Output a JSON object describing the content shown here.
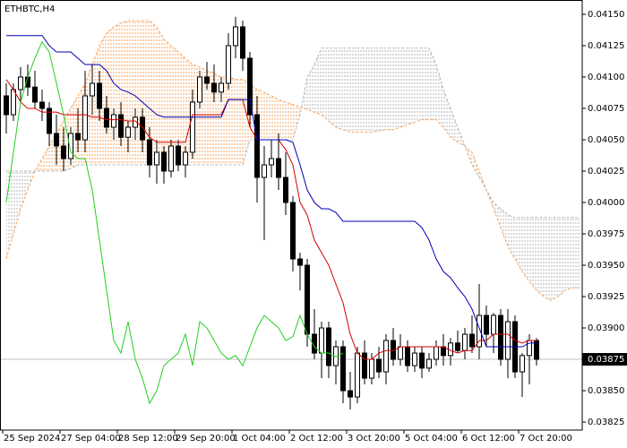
{
  "chart_data": {
    "type": "candlestick",
    "title": "ETHBTC,H4",
    "categories": [
      "25 Sep 2024",
      null,
      null,
      null,
      null,
      null,
      null,
      null,
      "27 Sep 04:00",
      null,
      null,
      null,
      null,
      null,
      null,
      null,
      "28 Sep 12:00",
      null,
      null,
      null,
      null,
      null,
      null,
      null,
      "29 Sep 20:00",
      null,
      null,
      null,
      null,
      null,
      null,
      null,
      "1 Oct 04:00",
      null,
      null,
      null,
      null,
      null,
      null,
      null,
      "2 Oct 12:00",
      null,
      null,
      null,
      null,
      null,
      null,
      null,
      "3 Oct 20:00",
      null,
      null,
      null,
      null,
      null,
      null,
      null,
      "5 Oct 04:00",
      null,
      null,
      null,
      null,
      null,
      null,
      null,
      "6 Oct 12:00",
      null,
      null,
      null,
      null,
      null,
      null,
      null,
      "7 Oct 20:00",
      null,
      null,
      null,
      null,
      null,
      null,
      null,
      null
    ],
    "candles": {
      "open": [
        0.04085,
        0.0407,
        0.0409,
        0.041,
        0.04092,
        0.0408,
        0.04075,
        0.04055,
        0.04045,
        0.04035,
        0.04055,
        0.0405,
        0.04085,
        0.04095,
        0.04075,
        0.0406,
        0.0407,
        0.04052,
        0.0406,
        0.04068,
        0.0405,
        0.0403,
        0.0404,
        0.04025,
        0.04045,
        0.0403,
        0.0404,
        0.0408,
        0.041,
        0.04095,
        0.04088,
        0.04095,
        0.04125,
        0.0414,
        0.04115,
        0.0407,
        0.0402,
        0.0403,
        0.04035,
        0.0402,
        0.04,
        0.03955,
        0.0395,
        0.03895,
        0.0388,
        0.039,
        0.0387,
        0.03885,
        0.0385,
        0.03845,
        0.0388,
        0.0386,
        0.03875,
        0.03865,
        0.0389,
        0.03875,
        0.03885,
        0.0387,
        0.0388,
        0.03868,
        0.03875,
        0.03885,
        0.03878,
        0.03888,
        0.03882,
        0.03895,
        0.03885,
        0.0391,
        0.03895,
        0.0391,
        0.03875,
        0.03905,
        0.03865,
        0.03878,
        0.0389,
        null,
        null,
        null,
        null,
        null,
        null
      ],
      "high": [
        0.04095,
        0.04095,
        0.04108,
        0.0411,
        0.04105,
        0.0409,
        0.0408,
        0.0407,
        0.0406,
        0.0406,
        0.04075,
        0.04105,
        0.0411,
        0.04105,
        0.04085,
        0.04075,
        0.0408,
        0.04065,
        0.04075,
        0.04075,
        0.0406,
        0.0405,
        0.04045,
        0.0405,
        0.0405,
        0.04045,
        0.0409,
        0.04105,
        0.04112,
        0.0411,
        0.041,
        0.04135,
        0.04148,
        0.04145,
        0.0412,
        0.04085,
        0.04045,
        0.0405,
        0.04055,
        0.0404,
        0.04005,
        0.0396,
        0.03955,
        0.03915,
        0.03905,
        0.03905,
        0.0389,
        0.0389,
        0.03865,
        0.03885,
        0.0389,
        0.0388,
        0.03885,
        0.03895,
        0.039,
        0.03895,
        0.0389,
        0.03885,
        0.03885,
        0.0388,
        0.0389,
        0.03895,
        0.03892,
        0.03898,
        0.039,
        0.0391,
        0.03935,
        0.03918,
        0.03912,
        0.03915,
        0.03915,
        0.0391,
        0.0388,
        0.03895,
        0.03892,
        null,
        null,
        null,
        null,
        null,
        null
      ],
      "low": [
        0.04055,
        0.04065,
        0.0408,
        0.04085,
        0.04075,
        0.04065,
        0.04045,
        0.0403,
        0.04025,
        0.0403,
        0.0404,
        0.0404,
        0.0407,
        0.04065,
        0.04055,
        0.0405,
        0.04045,
        0.0404,
        0.0405,
        0.0404,
        0.0402,
        0.04015,
        0.04015,
        0.0402,
        0.04025,
        0.0402,
        0.04035,
        0.04075,
        0.0409,
        0.0408,
        0.0408,
        0.0409,
        0.04115,
        0.04105,
        0.0406,
        0.04,
        0.0397,
        0.0402,
        0.0401,
        0.0399,
        0.03945,
        0.0393,
        0.03885,
        0.03875,
        0.0386,
        0.0386,
        0.03855,
        0.0384,
        0.03835,
        0.0384,
        0.03855,
        0.03855,
        0.0386,
        0.03855,
        0.0387,
        0.0387,
        0.03865,
        0.03865,
        0.0386,
        0.03865,
        0.0387,
        0.0387,
        0.0387,
        0.0388,
        0.03875,
        0.0388,
        0.03875,
        0.03885,
        0.0388,
        0.0387,
        0.0386,
        0.0386,
        0.03845,
        0.03855,
        0.0387,
        null,
        null,
        null,
        null,
        null,
        null
      ],
      "close": [
        0.0407,
        0.0409,
        0.041,
        0.04092,
        0.0408,
        0.04075,
        0.04055,
        0.04045,
        0.04035,
        0.04055,
        0.0405,
        0.04085,
        0.04095,
        0.04075,
        0.0406,
        0.0407,
        0.04052,
        0.0406,
        0.04068,
        0.0405,
        0.0403,
        0.0404,
        0.04025,
        0.04045,
        0.0403,
        0.0404,
        0.0408,
        0.041,
        0.04095,
        0.04088,
        0.04095,
        0.04125,
        0.0414,
        0.04115,
        0.0407,
        0.0402,
        0.0403,
        0.04035,
        0.0402,
        0.04,
        0.03955,
        0.0395,
        0.03895,
        0.0388,
        0.039,
        0.0387,
        0.03885,
        0.0385,
        0.03845,
        0.0388,
        0.0386,
        0.03875,
        0.03865,
        0.0389,
        0.03875,
        0.03885,
        0.0387,
        0.0388,
        0.03868,
        0.03875,
        0.03885,
        0.03878,
        0.03888,
        0.03882,
        0.03895,
        0.03885,
        0.0391,
        0.03895,
        0.0391,
        0.03875,
        0.03905,
        0.03865,
        0.03878,
        0.0389,
        0.03875,
        null,
        null,
        null,
        null,
        null,
        null
      ],
      "up_color": "#ffffff",
      "down_color": "#000000",
      "edge_color": "#000000"
    },
    "lines": [
      {
        "color": "#d40000",
        "values": [
          0.04098,
          0.0409,
          0.0408,
          0.04075,
          0.04075,
          0.04072,
          0.04072,
          0.04072,
          0.0407,
          0.0407,
          0.0407,
          0.0407,
          0.04068,
          0.04068,
          0.04066,
          0.04066,
          0.04066,
          0.04065,
          0.04065,
          0.0406,
          0.04052,
          0.04048,
          0.04048,
          0.04048,
          0.04048,
          0.04048,
          0.0407,
          0.0407,
          0.0407,
          0.0407,
          0.0407,
          0.04082,
          0.04082,
          0.04082,
          0.0406,
          0.0405,
          0.0405,
          0.0405,
          0.0405,
          0.04042,
          0.0403,
          0.04,
          0.0399,
          0.0397,
          0.0396,
          0.0395,
          0.03935,
          0.0392,
          0.03895,
          0.0388,
          0.03875,
          0.03875,
          0.0388,
          0.03882,
          0.03882,
          0.03885,
          0.03885,
          0.03885,
          0.03885,
          0.03885,
          0.03885,
          0.03885,
          0.03882,
          0.0388,
          0.03882,
          0.03882,
          0.0389,
          0.0389,
          0.03895,
          0.03895,
          0.03895,
          0.0389,
          0.03888,
          0.0389,
          0.0389,
          null,
          null,
          null,
          null,
          null,
          null
        ]
      },
      {
        "color": "#0000b4",
        "values": [
          0.04133,
          0.04133,
          0.04133,
          0.04133,
          0.04133,
          0.04133,
          0.04125,
          0.0412,
          0.0412,
          0.0412,
          0.04115,
          0.0411,
          0.0411,
          0.0411,
          0.04105,
          0.04095,
          0.0409,
          0.04088,
          0.04085,
          0.0408,
          0.04075,
          0.0407,
          0.04068,
          0.04068,
          0.04068,
          0.04068,
          0.04068,
          0.04068,
          0.04068,
          0.04068,
          0.04068,
          0.04082,
          0.04082,
          0.04082,
          0.04082,
          0.0405,
          0.0405,
          0.0405,
          0.0405,
          0.0405,
          0.04048,
          0.0403,
          0.0401,
          0.04,
          0.03995,
          0.03995,
          0.03992,
          0.03985,
          0.03985,
          0.03985,
          0.03985,
          0.03985,
          0.03985,
          0.03985,
          0.03985,
          0.03985,
          0.03985,
          0.03985,
          0.0398,
          0.0397,
          0.03955,
          0.03945,
          0.0394,
          0.03932,
          0.03925,
          0.03915,
          0.039,
          0.03885,
          0.03885,
          0.03885,
          0.03885,
          0.03885,
          0.03885,
          0.03888,
          0.03888,
          null,
          null,
          null,
          null,
          null,
          null
        ]
      },
      {
        "color": "#22d022",
        "values": [
          0.04,
          0.0404,
          0.0408,
          0.041,
          0.04115,
          0.04128,
          0.0412,
          0.04095,
          0.0407,
          0.0404,
          0.04035,
          0.04035,
          0.0401,
          0.0397,
          0.0393,
          0.0389,
          0.0388,
          0.03905,
          0.03875,
          0.0386,
          0.0384,
          0.0385,
          0.0387,
          0.03875,
          0.0388,
          0.03895,
          0.0387,
          0.03905,
          0.039,
          0.0389,
          0.0388,
          0.03875,
          0.03878,
          0.0387,
          0.03885,
          0.039,
          0.0391,
          0.03905,
          0.039,
          0.0389,
          0.03893,
          0.0391,
          0.03895,
          0.03885,
          0.0388,
          0.0388,
          0.03877,
          0.0388,
          null,
          null,
          null,
          null,
          null,
          null,
          null,
          null,
          null,
          null,
          null,
          null,
          null,
          null,
          null,
          null,
          null,
          null,
          null,
          null,
          null,
          null,
          null,
          null,
          null,
          null,
          null,
          null,
          null,
          null,
          null,
          null,
          null
        ]
      }
    ],
    "cloud": {
      "span_a": {
        "color": "#f4a460",
        "values": [
          0.03955,
          0.03975,
          0.03995,
          0.0401,
          0.04025,
          0.04035,
          0.04045,
          0.04055,
          0.04065,
          0.04075,
          0.04085,
          0.04095,
          0.0411,
          0.04125,
          0.04135,
          0.0414,
          0.04143,
          0.04145,
          0.04145,
          0.04145,
          0.04145,
          0.0414,
          0.0413,
          0.04125,
          0.0412,
          0.04115,
          0.0411,
          0.04108,
          0.04105,
          0.04103,
          0.041,
          0.041,
          0.04098,
          0.04098,
          0.04095,
          0.0409,
          0.04088,
          0.04085,
          0.04082,
          0.0408,
          0.04078,
          0.04076,
          0.04074,
          0.04072,
          0.0407,
          0.04065,
          0.0406,
          0.04058,
          0.04056,
          0.04056,
          0.04056,
          0.04056,
          0.04057,
          0.04058,
          0.04058,
          0.0406,
          0.04062,
          0.04064,
          0.04066,
          0.04066,
          0.04066,
          0.0406,
          0.04052,
          0.04048,
          0.04045,
          0.0404,
          0.04025,
          0.0401,
          0.03995,
          0.0398,
          0.03965,
          0.03955,
          0.03945,
          0.03937,
          0.0393,
          0.03925,
          0.03922,
          0.03925,
          0.0393,
          0.03932,
          0.03932
        ]
      },
      "span_b": {
        "color": "#b4b4b4",
        "values": [
          0.04025,
          0.04025,
          0.04025,
          0.04025,
          0.04025,
          0.04025,
          0.04025,
          0.04025,
          0.04025,
          0.04027,
          0.0403,
          0.0403,
          0.0403,
          0.0403,
          0.0403,
          0.0403,
          0.0403,
          0.0403,
          0.0403,
          0.0403,
          0.0403,
          0.0403,
          0.0403,
          0.0403,
          0.0403,
          0.0403,
          0.0403,
          0.0403,
          0.0403,
          0.0403,
          0.0403,
          0.0403,
          0.0403,
          0.0403,
          0.0405,
          0.0405,
          0.0405,
          0.0405,
          0.0405,
          0.0405,
          0.0405,
          0.0407,
          0.041,
          0.0411,
          0.04123,
          0.04123,
          0.04123,
          0.04123,
          0.04123,
          0.04123,
          0.04123,
          0.04123,
          0.04123,
          0.04123,
          0.04123,
          0.04123,
          0.04123,
          0.04123,
          0.04123,
          0.04123,
          0.0411,
          0.0409,
          0.04075,
          0.0406,
          0.04045,
          0.0403,
          0.0402,
          0.0401,
          0.04,
          0.03995,
          0.0399,
          0.03988,
          0.03988,
          0.03988,
          0.03988,
          0.03988,
          0.03988,
          0.03988,
          0.03988,
          0.03988,
          0.03988
        ]
      }
    },
    "current_price": {
      "value": 0.03875,
      "label": "0.03875"
    },
    "ylim": [
      0.038186,
      0.041614
    ],
    "yticks": [
      {
        "value": 0.0415,
        "label": "0.04150"
      },
      {
        "value": 0.04125,
        "label": "0.04125"
      },
      {
        "value": 0.041,
        "label": "0.04100"
      },
      {
        "value": 0.04075,
        "label": "0.04075"
      },
      {
        "value": 0.0405,
        "label": "0.04050"
      },
      {
        "value": 0.04025,
        "label": "0.04025"
      },
      {
        "value": 0.04,
        "label": "0.04000"
      },
      {
        "value": 0.03975,
        "label": "0.03975"
      },
      {
        "value": 0.0395,
        "label": "0.03950"
      },
      {
        "value": 0.03925,
        "label": "0.03925"
      },
      {
        "value": 0.039,
        "label": "0.03900"
      },
      {
        "value": 0.03875,
        "label": "0.03875"
      },
      {
        "value": 0.0385,
        "label": "0.03850"
      },
      {
        "value": 0.03825,
        "label": "0.03825"
      }
    ],
    "grid": false
  }
}
